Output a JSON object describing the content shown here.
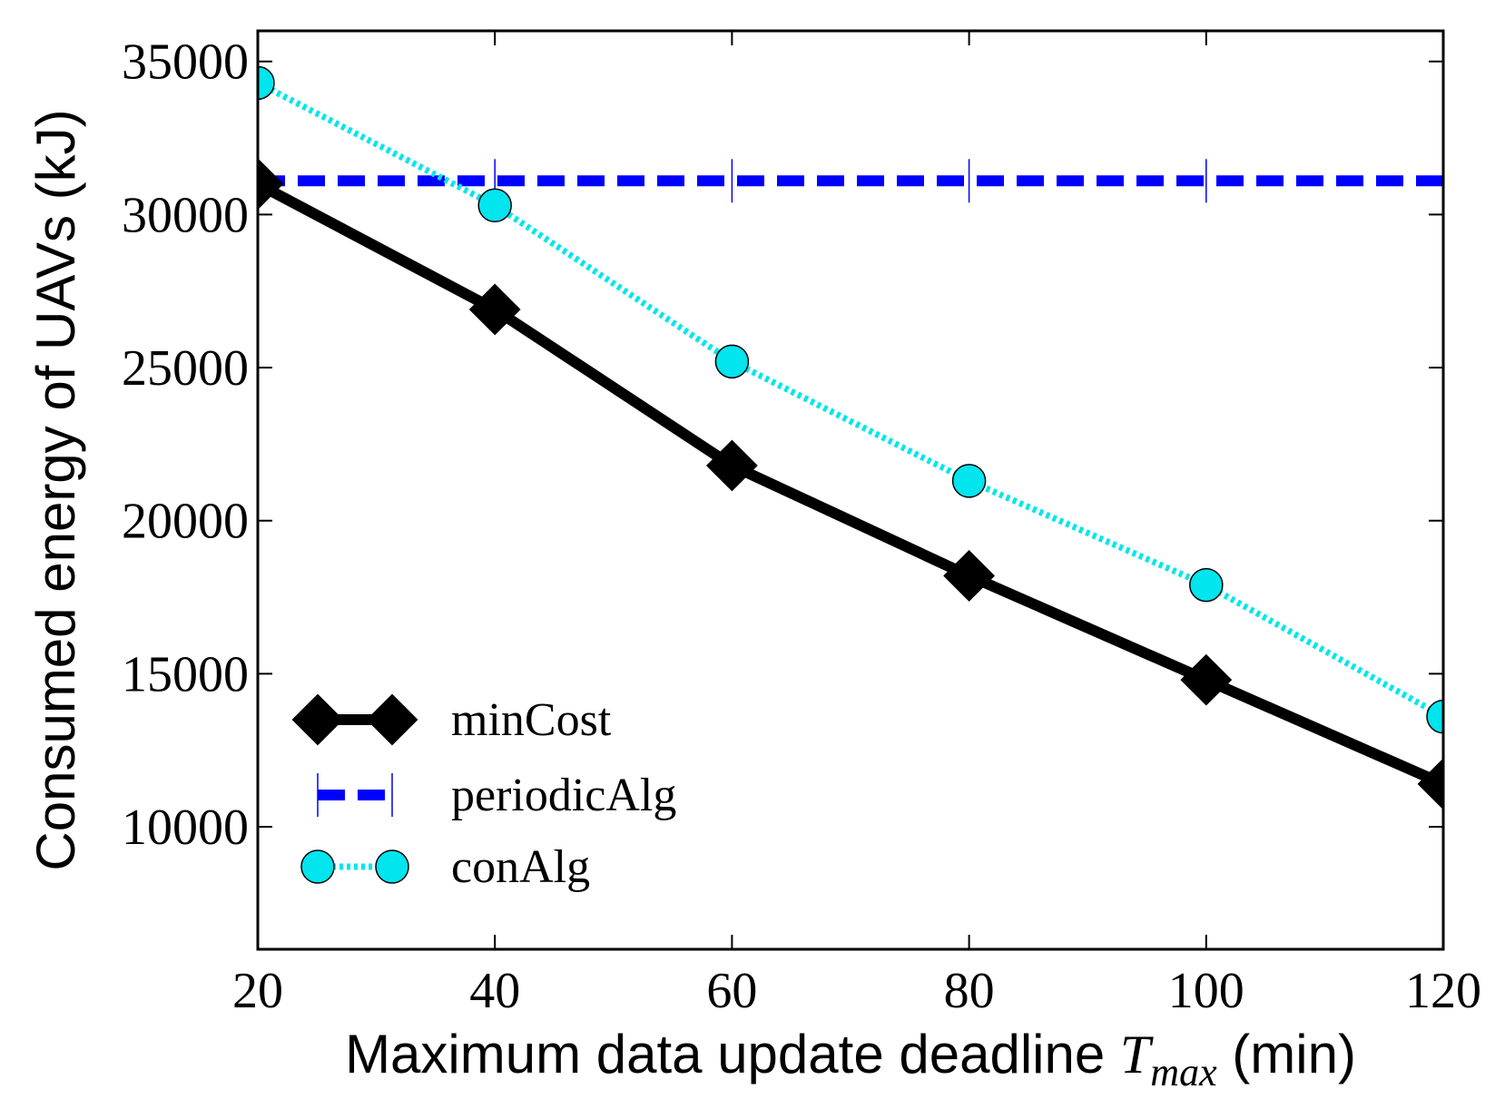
{
  "chart_data": {
    "type": "line",
    "title": "",
    "xlabel": "Maximum data update deadline",
    "xlabel_symbol": "T",
    "xlabel_subscript": "max",
    "xlabel_unit": "(min)",
    "ylabel": "Consumed energy of UAVs (kJ)",
    "x": [
      20,
      40,
      60,
      80,
      100,
      120
    ],
    "xlim": [
      20,
      120
    ],
    "ylim": [
      6000,
      36000
    ],
    "xticks": [
      20,
      40,
      60,
      80,
      100,
      120
    ],
    "yticks": [
      10000,
      15000,
      20000,
      25000,
      30000,
      35000
    ],
    "grid": false,
    "legend_position": "lower-left",
    "series": [
      {
        "name": "minCost",
        "color": "#000000",
        "line_style": "solid",
        "marker": "diamond",
        "values": [
          31000,
          26900,
          21800,
          18200,
          14800,
          11400
        ]
      },
      {
        "name": "periodicAlg",
        "color": "#0000ff",
        "line_style": "dashed",
        "marker": "vline",
        "values": [
          31100,
          31100,
          31100,
          31100,
          31100,
          31100
        ]
      },
      {
        "name": "conAlg",
        "color": "#00e5ee",
        "line_style": "dotted",
        "marker": "circle",
        "values": [
          34300,
          30300,
          25200,
          21300,
          17900,
          13600
        ]
      }
    ]
  }
}
